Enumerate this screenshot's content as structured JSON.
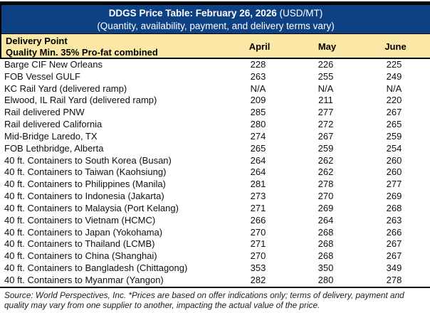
{
  "header": {
    "title_bold": "DDGS Price Table: February 26, 2026",
    "title_regular": " (USD/MT)",
    "subtitle": "(Quantity, availability, payment, and delivery terms vary)"
  },
  "columns": {
    "delivery_point_line1": "Delivery Point",
    "delivery_point_line2": "Quality Min. 35% Pro-fat combined",
    "months": [
      "April",
      "May",
      "June"
    ]
  },
  "table": {
    "rows": [
      {
        "delivery_point": "Barge CIF New Orleans",
        "april": "228",
        "may": "226",
        "june": "225"
      },
      {
        "delivery_point": "FOB Vessel GULF",
        "april": "263",
        "may": "255",
        "june": "249"
      },
      {
        "delivery_point": "KC Rail Yard (delivered ramp)",
        "april": "N/A",
        "may": "N/A",
        "june": "N/A"
      },
      {
        "delivery_point": "Elwood, IL Rail Yard (delivered ramp)",
        "april": "209",
        "may": "211",
        "june": "220"
      },
      {
        "delivery_point": "Rail delivered PNW",
        "april": "285",
        "may": "277",
        "june": "267"
      },
      {
        "delivery_point": "Rail delivered California",
        "april": "280",
        "may": "272",
        "june": "265"
      },
      {
        "delivery_point": "Mid-Bridge Laredo, TX",
        "april": "274",
        "may": "267",
        "june": "259"
      },
      {
        "delivery_point": "FOB Lethbridge, Alberta",
        "april": "265",
        "may": "259",
        "june": "254"
      },
      {
        "delivery_point": "40 ft. Containers to South Korea (Busan)",
        "april": "264",
        "may": "262",
        "june": "260"
      },
      {
        "delivery_point": "40 ft. Containers to Taiwan (Kaohsiung)",
        "april": "264",
        "may": "262",
        "june": "260"
      },
      {
        "delivery_point": "40 ft. Containers to Philippines (Manila)",
        "april": "281",
        "may": "278",
        "june": "277"
      },
      {
        "delivery_point": "40 ft. Containers to Indonesia (Jakarta)",
        "april": "273",
        "may": "270",
        "june": "269"
      },
      {
        "delivery_point": "40 ft. Containers to Malaysia (Port Kelang)",
        "april": "271",
        "may": "269",
        "june": "268"
      },
      {
        "delivery_point": "40 ft. Containers to Vietnam (HCMC)",
        "april": "266",
        "may": "264",
        "june": "263"
      },
      {
        "delivery_point": "40 ft. Containers to Japan (Yokohama)",
        "april": "270",
        "may": "268",
        "june": "266"
      },
      {
        "delivery_point": "40 ft. Containers to Thailand (LCMB)",
        "april": "271",
        "may": "268",
        "june": "267"
      },
      {
        "delivery_point": "40 ft. Containers to China (Shanghai)",
        "april": "270",
        "may": "268",
        "june": "267"
      },
      {
        "delivery_point": "40 ft. Containers to Bangladesh (Chittagong)",
        "april": "353",
        "may": "350",
        "june": "349"
      },
      {
        "delivery_point": "40 ft. Containers to Myanmar (Yangon)",
        "april": "282",
        "may": "280",
        "june": "278"
      }
    ]
  },
  "footer": {
    "source_note": "Source: World Perspectives, Inc. *Prices are based on offer indications only; terms of delivery, payment and quality may vary from one supplier to another, impacting the actual value of the price."
  },
  "colors": {
    "header_navy": "#0d4183",
    "header_cream": "#fbe8a6",
    "border_black": "#000000",
    "title_text": "#ffffff",
    "body_text": "#0f0f0f"
  }
}
